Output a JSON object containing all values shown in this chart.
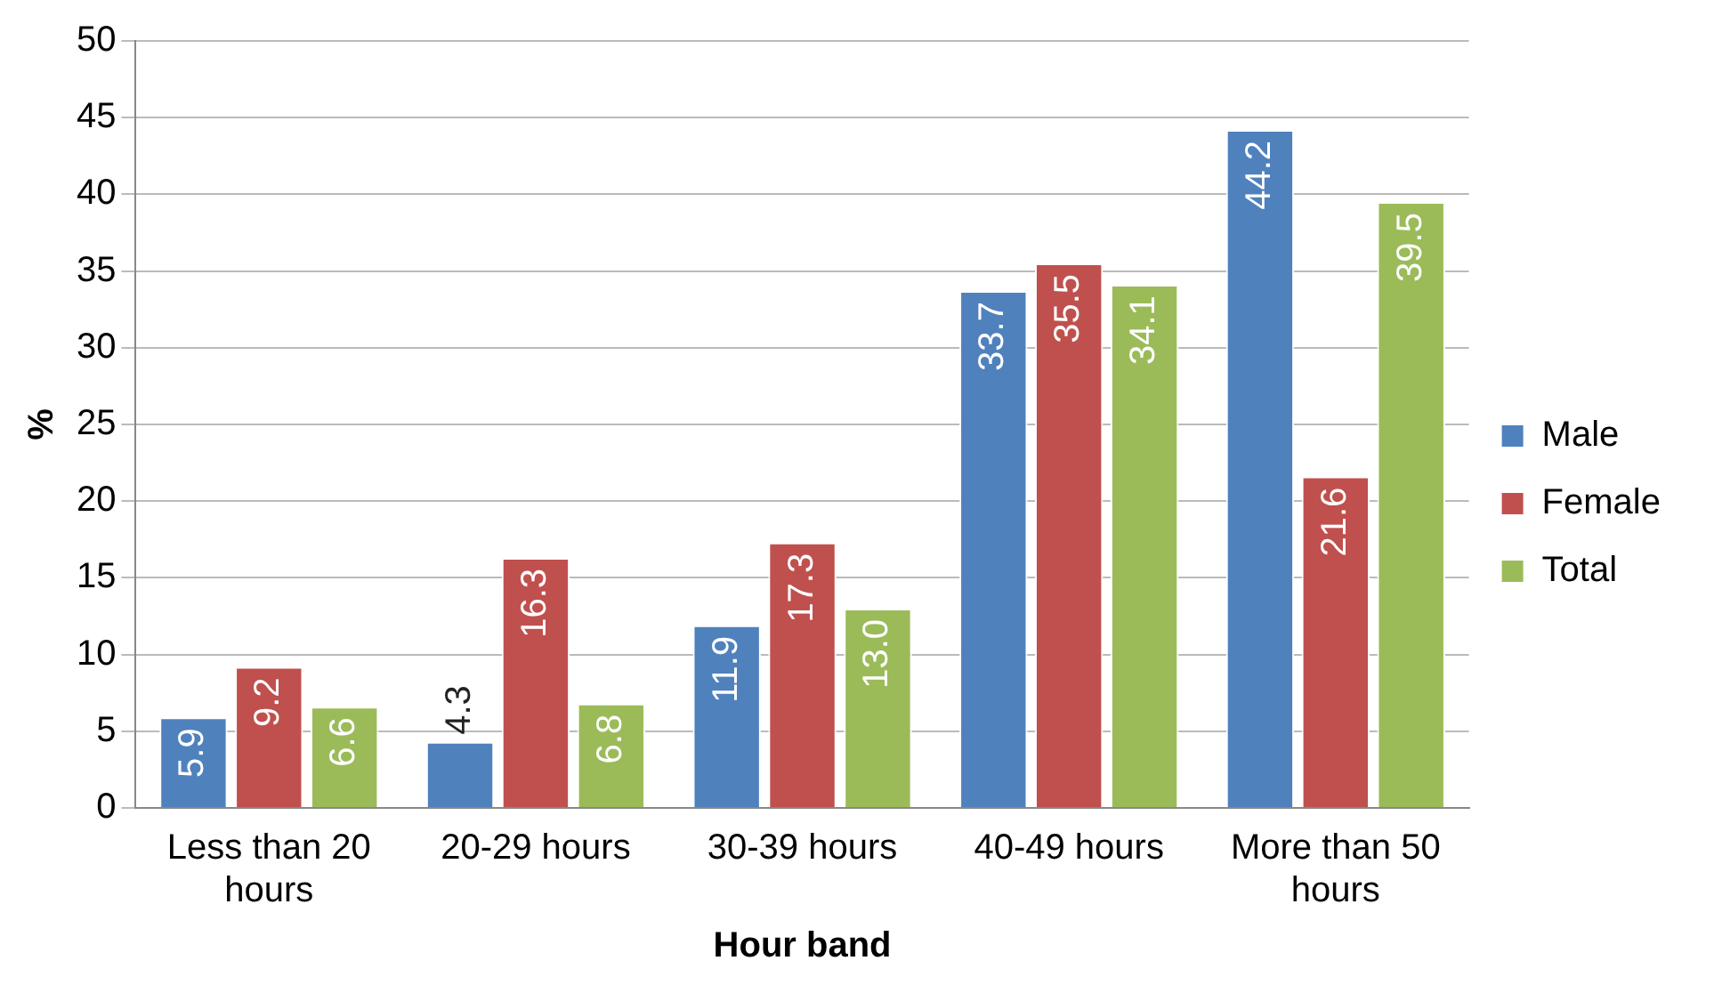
{
  "chart_data": {
    "type": "bar",
    "xlabel": "Hour band",
    "ylabel": "%",
    "categories": [
      "Less than 20 hours",
      "20-29 hours",
      "30-39 hours",
      "40-49 hours",
      "More than 50 hours"
    ],
    "series": [
      {
        "name": "Male",
        "color": "#4f81bd",
        "values": [
          5.9,
          4.3,
          11.9,
          33.7,
          44.2
        ],
        "value_labels": [
          "5.9",
          "4.3",
          "11.9",
          "33.7",
          "44.2"
        ]
      },
      {
        "name": "Female",
        "color": "#c0504d",
        "values": [
          9.2,
          16.3,
          17.3,
          35.5,
          21.6
        ],
        "value_labels": [
          "9.2",
          "16.3",
          "17.3",
          "35.5",
          "21.6"
        ]
      },
      {
        "name": "Total",
        "color": "#9bbb59",
        "values": [
          6.6,
          6.8,
          13.0,
          34.1,
          39.5
        ],
        "value_labels": [
          "6.6",
          "6.8",
          "13.0",
          "34.1",
          "39.5"
        ]
      }
    ],
    "ylim": [
      0,
      50
    ],
    "yticks": [
      0,
      5,
      10,
      15,
      20,
      25,
      30,
      35,
      40,
      45,
      50
    ],
    "grid": "y",
    "legend": "right"
  }
}
